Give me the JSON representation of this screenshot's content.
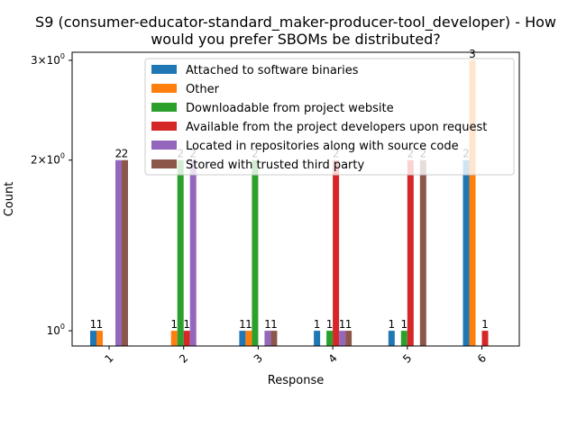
{
  "chart_data": {
    "type": "bar",
    "title": "S9 (consumer-educator-standard_maker-producer-tool_developer) - How would you prefer SBOMs be distributed?",
    "title_lines": [
      "S9 (consumer-educator-standard_maker-producer-tool_developer) - How",
      "would you prefer SBOMs be distributed?"
    ],
    "xlabel": "Response",
    "ylabel": "Count",
    "yscale": "log",
    "ylim": [
      0.94,
      3.1
    ],
    "yticks": [
      {
        "value": 1,
        "base": "10",
        "exp": "0",
        "coef": ""
      },
      {
        "value": 2,
        "base": "10",
        "exp": "0",
        "coef": "2×"
      },
      {
        "value": 3,
        "base": "10",
        "exp": "0",
        "coef": "3×"
      }
    ],
    "categories": [
      "1",
      "2",
      "3",
      "4",
      "5",
      "6"
    ],
    "legend_position": "top-center",
    "series": [
      {
        "name": "Attached to software binaries",
        "color": "#1f77b4",
        "values": [
          1,
          null,
          1,
          1,
          1,
          2
        ],
        "labels": [
          "1",
          "",
          "1",
          "1",
          "1",
          "2"
        ]
      },
      {
        "name": "Other",
        "color": "#ff7f0e",
        "values": [
          1,
          1,
          1,
          null,
          null,
          3
        ],
        "labels": [
          "1",
          "1",
          "1",
          "",
          "",
          "3"
        ]
      },
      {
        "name": "Downloadable from project website",
        "color": "#2ca02c",
        "values": [
          null,
          2,
          2,
          1,
          1,
          null
        ],
        "labels": [
          "",
          "2",
          "2",
          "1",
          "1",
          ""
        ]
      },
      {
        "name": "Available from the project developers upon request",
        "color": "#d62728",
        "values": [
          null,
          1,
          null,
          2,
          2,
          1
        ],
        "labels": [
          "",
          "1",
          "",
          "2",
          "2",
          "1"
        ]
      },
      {
        "name": "Located in repositories along with source code",
        "color": "#9467bd",
        "values": [
          2,
          2,
          1,
          1,
          null,
          null
        ],
        "labels": [
          "2",
          "2",
          "1",
          "1",
          "",
          ""
        ]
      },
      {
        "name": "Stored with trusted third party",
        "color": "#8c564b",
        "values": [
          2,
          null,
          1,
          1,
          2,
          null
        ],
        "labels": [
          "2",
          "",
          "1",
          "1",
          "2",
          ""
        ]
      }
    ]
  }
}
